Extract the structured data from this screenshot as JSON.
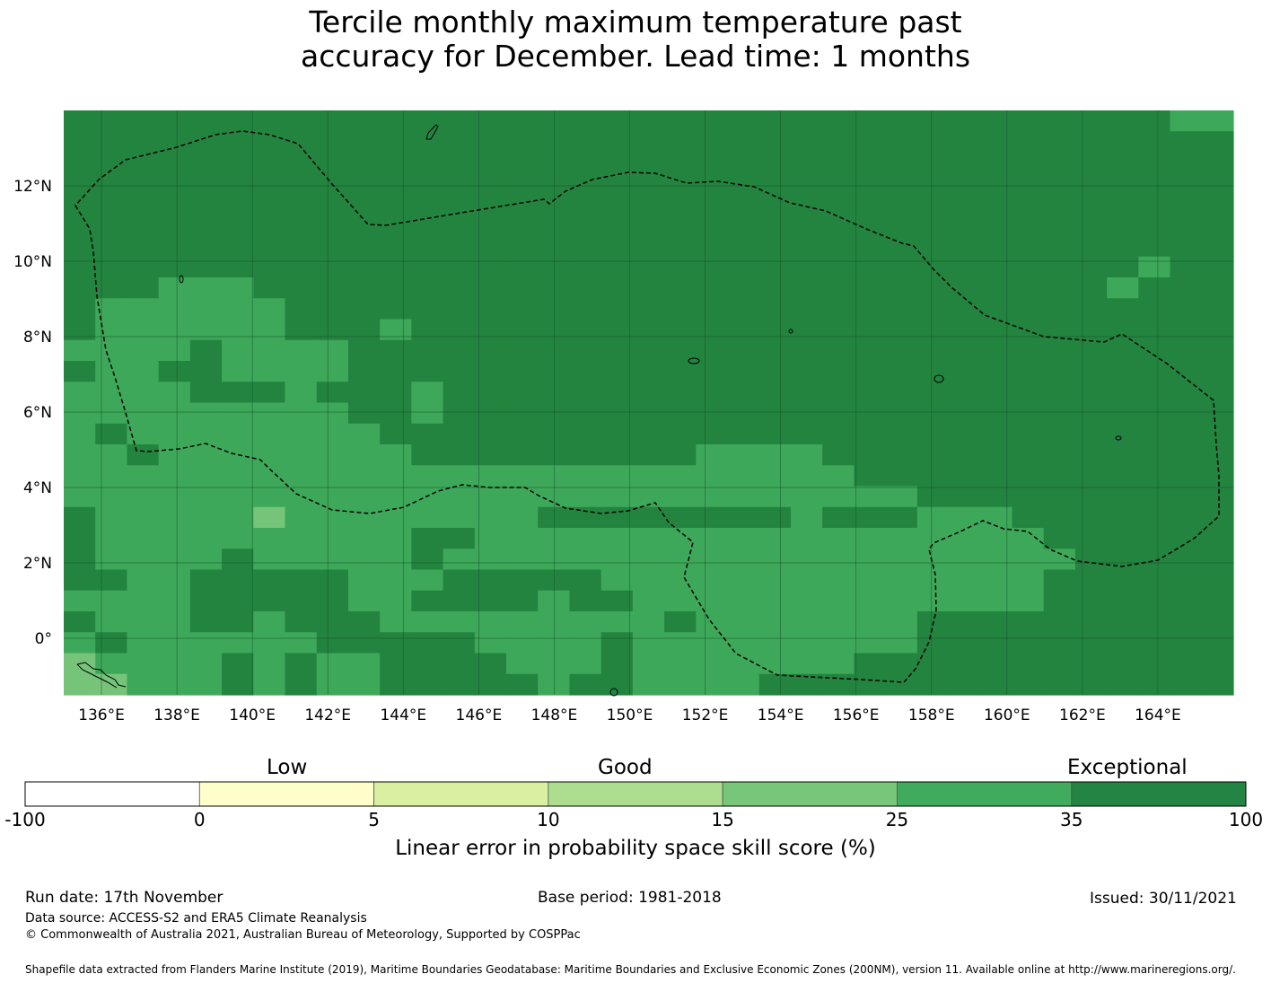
{
  "title_line1": "Tercile monthly maximum temperature past",
  "title_line2": "accuracy for December. Lead time: 1 months",
  "map": {
    "lon_range": [
      135,
      166
    ],
    "lat_range": [
      -1.5,
      14
    ],
    "lat_labels": [
      "12°N",
      "10°N",
      "8°N",
      "6°N",
      "4°N",
      "2°N",
      "0°"
    ],
    "lon_labels": [
      "136°E",
      "138°E",
      "140°E",
      "142°E",
      "144°E",
      "146°E",
      "148°E",
      "150°E",
      "152°E",
      "154°E",
      "156°E",
      "158°E",
      "160°E",
      "162°E",
      "164°E"
    ],
    "colors": {
      "dark": "#23843f",
      "mid": "#3ea85a",
      "light": "#76c37a",
      "grid": "#14522a"
    }
  },
  "colorbar": {
    "category_low": "Low",
    "category_good": "Good",
    "category_exceptional": "Exceptional",
    "ticks": [
      "-100",
      "0",
      "5",
      "10",
      "15",
      "25",
      "35",
      "100"
    ],
    "colors": [
      "#ffffff",
      "#ffffcc",
      "#d9f0a3",
      "#addd8e",
      "#78c679",
      "#41ab5d",
      "#238443"
    ],
    "label": "Linear error in probability space skill score (%)"
  },
  "footer": {
    "run_date": "Run date: 17th November",
    "base_period": "Base period: 1981-2018",
    "issued": "Issued: 30/11/2021",
    "data_source": "Data source: ACCESS-S2 and ERA5 Climate Reanalysis",
    "copyright": "© Commonwealth of Australia 2021, Australian Bureau of Meteorology, Supported by COSPPac",
    "shapefile": "Shapefile data extracted from Flanders Marine Institute (2019), Maritime Boundaries Geodatabase: Maritime Boundaries and Exclusive Economic Zones (200NM), version 11. Available online at http://www.marineregions.org/."
  }
}
